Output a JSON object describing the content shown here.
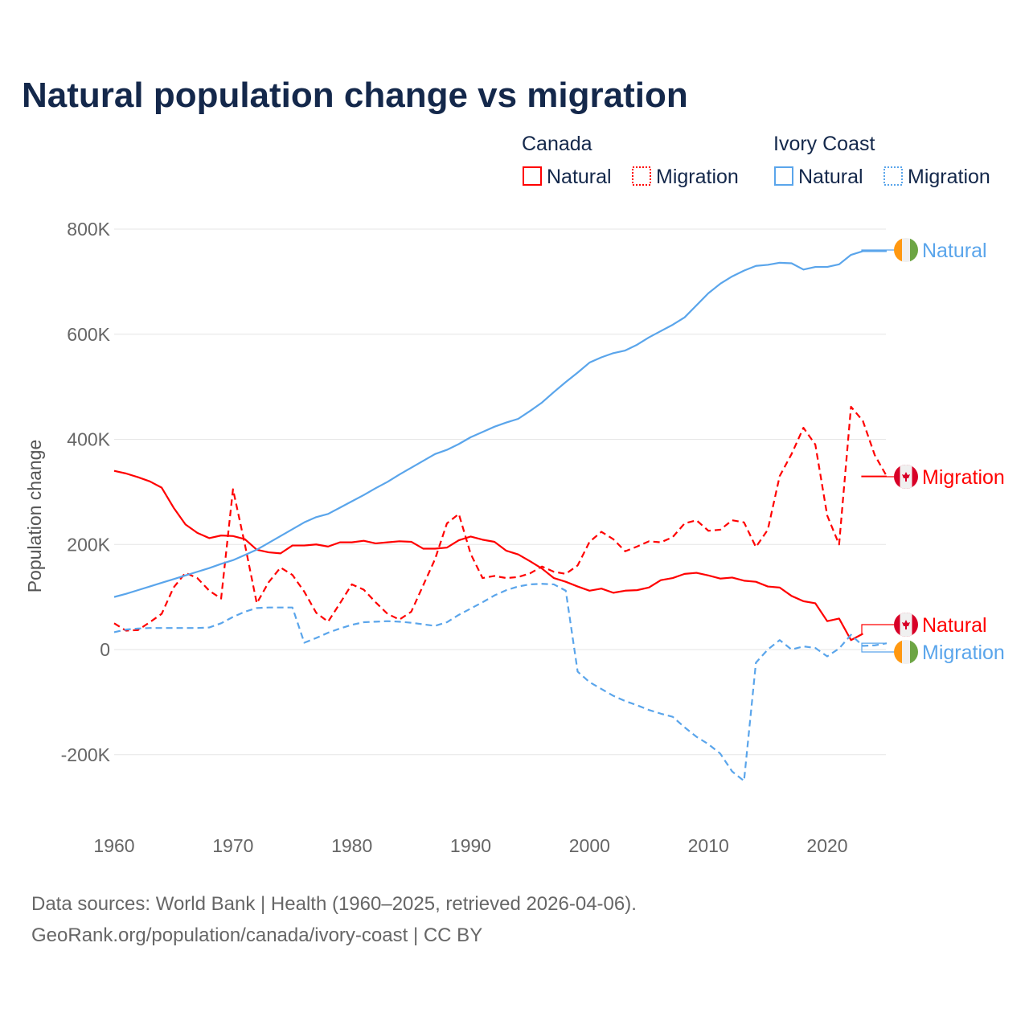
{
  "chart_data": {
    "type": "line",
    "title": "Natural population change vs migration",
    "xlabel": "",
    "ylabel": "Population change",
    "xlim": [
      1960,
      2025
    ],
    "ylim": [
      -300000,
      800000
    ],
    "yticks": [
      800000,
      600000,
      400000,
      200000,
      0,
      -200000
    ],
    "ytick_labels": [
      "800K",
      "600K",
      "400K",
      "200K",
      "0",
      "-200K"
    ],
    "xticks": [
      1960,
      1970,
      1980,
      1990,
      2000,
      2010,
      2020
    ],
    "xtick_labels": [
      "1960",
      "1970",
      "1980",
      "1990",
      "2000",
      "2010",
      "2020"
    ],
    "grid": true,
    "legend": {
      "placement": "top-right",
      "groups": [
        {
          "title": "Canada",
          "items": [
            "Natural",
            "Migration"
          ]
        },
        {
          "title": "Ivory Coast",
          "items": [
            "Natural",
            "Migration"
          ]
        }
      ]
    },
    "x_start": 1960,
    "series": [
      {
        "name": "Canada Natural",
        "country": "Canada",
        "kind": "Natural",
        "label": "Natural",
        "color": "#ff0000",
        "dash": "solid",
        "flag": "canada-flag",
        "values_k": [
          340,
          335,
          328,
          320,
          308,
          270,
          238,
          222,
          212,
          217,
          216,
          210,
          190,
          185,
          183,
          198,
          198,
          200,
          196,
          204,
          204,
          207,
          202,
          204,
          206,
          205,
          192,
          192,
          194,
          208,
          215,
          209,
          205,
          188,
          181,
          168,
          154,
          136,
          129,
          120,
          112,
          116,
          108,
          112,
          113,
          118,
          132,
          136,
          144,
          146,
          141,
          135,
          137,
          131,
          129,
          120,
          118,
          102,
          92,
          88,
          54,
          59,
          18,
          30
        ]
      },
      {
        "name": "Canada Migration",
        "country": "Canada",
        "kind": "Migration",
        "label": "Migration",
        "color": "#ff0000",
        "dash": "dashed",
        "flag": "canada-flag",
        "values_k": [
          50,
          36,
          37,
          52,
          68,
          118,
          146,
          136,
          112,
          97,
          305,
          200,
          88,
          128,
          156,
          142,
          110,
          70,
          53,
          88,
          124,
          114,
          90,
          68,
          57,
          72,
          122,
          172,
          240,
          258,
          182,
          136,
          140,
          136,
          138,
          145,
          158,
          148,
          144,
          160,
          205,
          224,
          210,
          187,
          196,
          206,
          204,
          214,
          240,
          246,
          226,
          228,
          246,
          242,
          195,
          228,
          330,
          372,
          422,
          390,
          255,
          200,
          462,
          435,
          370,
          330
        ]
      },
      {
        "name": "Ivory Coast Natural",
        "country": "Ivory Coast",
        "kind": "Natural",
        "label": "Natural",
        "color": "#5aa5eb",
        "dash": "solid",
        "flag": "ivory-coast-flag",
        "values_k": [
          100,
          106,
          113,
          120,
          127,
          134,
          141,
          148,
          155,
          163,
          170,
          180,
          190,
          203,
          216,
          229,
          242,
          252,
          258,
          270,
          282,
          294,
          307,
          319,
          333,
          346,
          359,
          372,
          380,
          391,
          404,
          414,
          424,
          432,
          439,
          454,
          470,
          490,
          509,
          527,
          546,
          556,
          564,
          569,
          580,
          594,
          606,
          618,
          632,
          655,
          678,
          696,
          710,
          721,
          730,
          732,
          736,
          735,
          723,
          728,
          728,
          733,
          751,
          758,
          758,
          758
        ]
      },
      {
        "name": "Ivory Coast Migration",
        "country": "Ivory Coast",
        "kind": "Migration",
        "label": "Migration",
        "color": "#5aa5eb",
        "dash": "dashed",
        "flag": "ivory-coast-flag",
        "values_k": [
          33,
          38,
          40,
          41,
          41,
          41,
          41,
          41,
          42,
          50,
          62,
          72,
          79,
          80,
          80,
          80,
          13,
          22,
          32,
          40,
          47,
          52,
          53,
          54,
          53,
          51,
          48,
          45,
          52,
          66,
          78,
          90,
          103,
          113,
          120,
          124,
          125,
          124,
          112,
          -42,
          -62,
          -75,
          -88,
          -98,
          -106,
          -115,
          -122,
          -128,
          -148,
          -166,
          -180,
          -198,
          -232,
          -250,
          -25,
          0,
          18,
          0,
          6,
          3,
          -13,
          2,
          28,
          7,
          8,
          12
        ]
      }
    ]
  },
  "footer": {
    "line1": "Data sources: World Bank | Health (1960–2025, retrieved 2026-04-06).",
    "line2": "GeoRank.org/population/canada/ivory-coast | CC BY"
  }
}
